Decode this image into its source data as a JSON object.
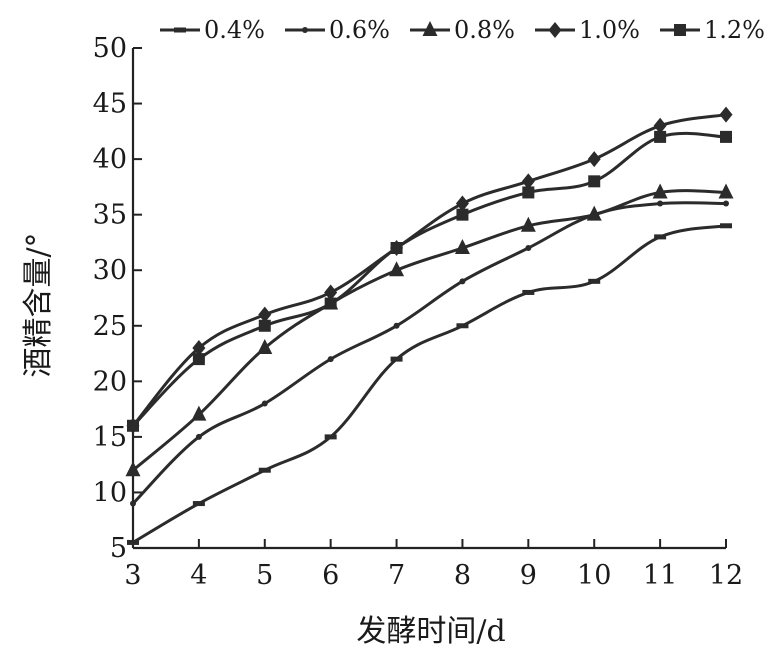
{
  "chart_data": {
    "type": "line",
    "xlabel": "发酵时间/d",
    "ylabel": "酒精含量/°",
    "x": [
      3,
      4,
      5,
      6,
      7,
      8,
      9,
      10,
      11,
      12
    ],
    "xlim": [
      3,
      12
    ],
    "ylim": [
      5,
      50
    ],
    "xticks": [
      "3",
      "4",
      "5",
      "6",
      "7",
      "8",
      "9",
      "10",
      "11",
      "12"
    ],
    "yticks": [
      "5",
      "10",
      "15",
      "20",
      "25",
      "30",
      "35",
      "40",
      "45",
      "50"
    ],
    "grid": false,
    "legend_position": "top",
    "line_color": "#2b2b2b",
    "series": [
      {
        "name": "0.4%",
        "marker": "dash",
        "values": [
          5.5,
          9,
          12,
          15,
          22,
          25,
          28,
          29,
          33,
          34
        ]
      },
      {
        "name": "0.6%",
        "marker": "dot",
        "values": [
          9,
          15,
          18,
          22,
          25,
          29,
          32,
          35,
          36,
          36
        ]
      },
      {
        "name": "0.8%",
        "marker": "triangle",
        "values": [
          12,
          17,
          23,
          27,
          30,
          32,
          34,
          35,
          37,
          37
        ]
      },
      {
        "name": "1.0%",
        "marker": "diamond",
        "values": [
          16,
          23,
          26,
          28,
          32,
          36,
          38,
          40,
          43,
          44
        ]
      },
      {
        "name": "1.2%",
        "marker": "square",
        "values": [
          16,
          22,
          25,
          27,
          32,
          35,
          37,
          38,
          42,
          42
        ]
      }
    ]
  }
}
